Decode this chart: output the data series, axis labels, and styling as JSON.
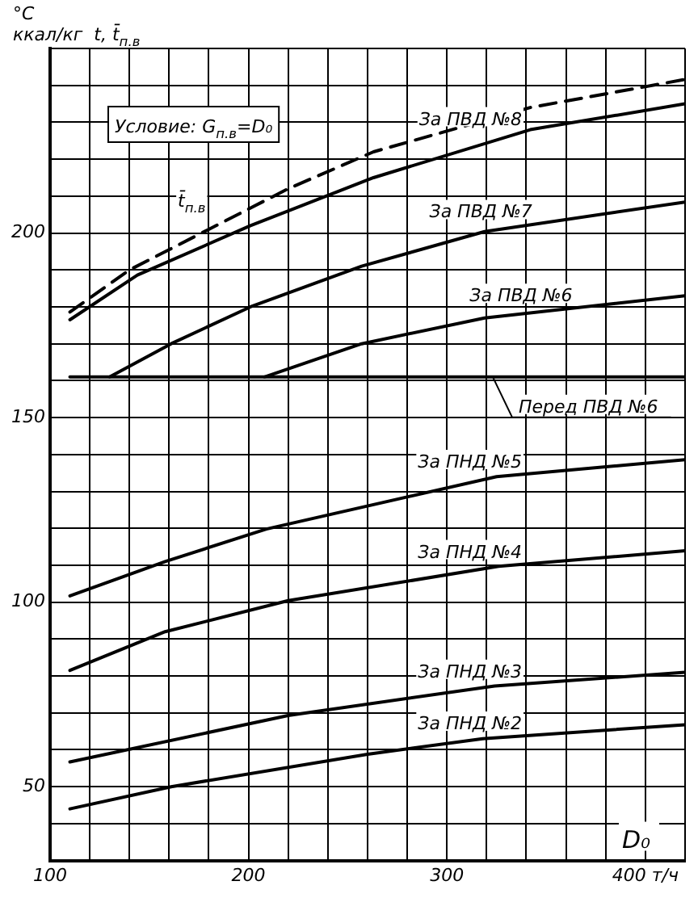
{
  "chart_data": {
    "type": "line",
    "ylabel": "°C\nккал/кг  t, t̄$_{п.в}$",
    "xlabel": "D₀",
    "annotations": [
      "Условие: G$_{п.в}$=D₀"
    ],
    "xlim": [
      100,
      420
    ],
    "xticks": [
      100,
      {
        "value": 120,
        "label": null
      },
      {
        "value": 140,
        "label": null
      },
      {
        "value": 160,
        "label": null
      },
      {
        "value": 180,
        "label": null
      },
      200,
      {
        "value": 220,
        "label": null
      },
      {
        "value": 240,
        "label": null
      },
      {
        "value": 260,
        "label": null
      },
      {
        "value": 280,
        "label": null
      },
      300,
      {
        "value": 320,
        "label": null
      },
      {
        "value": 340,
        "label": null
      },
      {
        "value": 360,
        "label": null
      },
      {
        "value": 380,
        "label": null
      },
      {
        "value": 400,
        "label": "400 т/ч"
      },
      {
        "value": 420,
        "label": null
      }
    ],
    "ylim": [
      30,
      250
    ],
    "yticks": [
      {
        "value": 30,
        "label": null
      },
      {
        "value": 40,
        "label": null
      },
      50,
      {
        "value": 60,
        "label": null
      },
      {
        "value": 70,
        "label": null
      },
      {
        "value": 80,
        "label": null
      },
      {
        "value": 90,
        "label": null
      },
      100,
      {
        "value": 110,
        "label": null
      },
      {
        "value": 120,
        "label": null
      },
      {
        "value": 130,
        "label": null
      },
      {
        "value": 140,
        "label": null
      },
      150,
      {
        "value": 160,
        "label": null
      },
      {
        "value": 170,
        "label": null
      },
      {
        "value": 180,
        "label": null
      },
      {
        "value": 190,
        "label": null
      },
      200,
      {
        "value": 210,
        "label": null
      },
      {
        "value": 220,
        "label": null
      },
      {
        "value": 230,
        "label": null
      },
      {
        "value": 240,
        "label": null
      },
      {
        "value": 250,
        "label": null
      }
    ],
    "grid": true,
    "legend": false,
    "marker": "none",
    "series": [
      {
        "name": "t̄$_{п.в}$",
        "color": "#000000",
        "line_style": "dashed",
        "x": [
          110,
          140,
          180,
          220,
          263,
          342,
          420
        ],
        "values": [
          178.6,
          190,
          201,
          212,
          222,
          234,
          241.6
        ]
      },
      {
        "name": "За ПВД №8",
        "color": "#000000",
        "x": [
          110,
          144,
          201,
          263,
          342,
          420
        ],
        "values": [
          176.5,
          188.6,
          202,
          215,
          228,
          235
        ]
      },
      {
        "name": "За ПВД №7",
        "color": "#000000",
        "x": [
          130,
          161,
          201,
          257,
          319,
          420
        ],
        "values": [
          161,
          170,
          180,
          191,
          200.4,
          208.4
        ]
      },
      {
        "name": "За ПВД №6",
        "color": "#000000",
        "x": [
          208,
          257,
          319,
          420
        ],
        "values": [
          161,
          170,
          177,
          183
        ]
      },
      {
        "name": "Перед ПВД №6",
        "color": "#000000",
        "x": [
          110,
          420
        ],
        "values": [
          161,
          161
        ]
      },
      {
        "name": "За ПНД №5",
        "color": "#000000",
        "x": [
          110,
          158,
          209,
          325,
          420
        ],
        "values": [
          101.7,
          111,
          119.8,
          134,
          138.6
        ]
      },
      {
        "name": "За ПНД №4",
        "color": "#000000",
        "x": [
          110,
          158,
          220,
          326,
          420
        ],
        "values": [
          81.5,
          92,
          100.4,
          109.7,
          113.9
        ]
      },
      {
        "name": "За ПНД №3",
        "color": "#000000",
        "x": [
          110,
          220,
          324,
          420
        ],
        "values": [
          56.7,
          69.3,
          77.3,
          81
        ]
      },
      {
        "name": "За ПНД №2",
        "color": "#000000",
        "x": [
          110,
          161,
          260,
          318,
          420
        ],
        "values": [
          44,
          50,
          58.8,
          63,
          66.8
        ]
      }
    ]
  }
}
